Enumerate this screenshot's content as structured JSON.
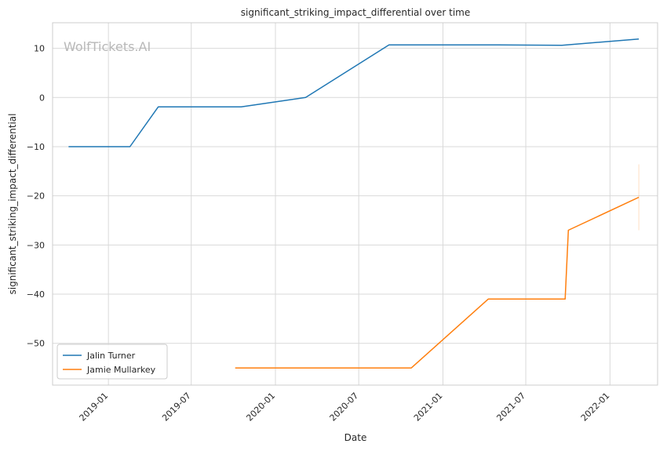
{
  "chart_data": {
    "type": "line",
    "title": "significant_striking_impact_differential over time",
    "xlabel": "Date",
    "ylabel": "significant_striking_impact_differential",
    "watermark": "WolfTickets.AI",
    "x_range": [
      "2018-09-01",
      "2022-04-15"
    ],
    "ylim": [
      -58.5,
      15.2
    ],
    "x_ticks": [
      "2019-01-01",
      "2019-07-01",
      "2020-01-01",
      "2020-07-01",
      "2021-01-01",
      "2021-07-01",
      "2022-01-01"
    ],
    "x_tick_labels": [
      "2019-01",
      "2019-07",
      "2020-01",
      "2020-07",
      "2021-01",
      "2021-07",
      "2022-01"
    ],
    "y_ticks": [
      10,
      0,
      -10,
      -20,
      -30,
      -40,
      -50
    ],
    "y_tick_labels": [
      "10",
      "0",
      "−10",
      "−20",
      "−30",
      "−40",
      "−50"
    ],
    "grid": true,
    "legend_position": "lower-left",
    "series": [
      {
        "name": "Jalin Turner",
        "color": "#1f77b4",
        "points": [
          {
            "x": "2018-10-06",
            "y": -10
          },
          {
            "x": "2019-02-17",
            "y": -10
          },
          {
            "x": "2019-04-20",
            "y": -1.9
          },
          {
            "x": "2019-10-18",
            "y": -1.9
          },
          {
            "x": "2020-03-07",
            "y": 0
          },
          {
            "x": "2020-09-05",
            "y": 10.7
          },
          {
            "x": "2021-04-10",
            "y": 10.7
          },
          {
            "x": "2021-09-18",
            "y": 10.6
          },
          {
            "x": "2022-03-05",
            "y": 11.9
          }
        ]
      },
      {
        "name": "Jamie Mullarkey",
        "color": "#ff7f0e",
        "points": [
          {
            "x": "2019-10-05",
            "y": -55
          },
          {
            "x": "2020-10-24",
            "y": -55
          },
          {
            "x": "2021-04-10",
            "y": -41
          },
          {
            "x": "2021-09-25",
            "y": -41
          },
          {
            "x": "2021-10-02",
            "y": -27
          },
          {
            "x": "2022-03-05",
            "y": -20.3
          }
        ],
        "band": {
          "x": "2022-03-05",
          "low": -27,
          "high": -13.6
        }
      }
    ]
  }
}
